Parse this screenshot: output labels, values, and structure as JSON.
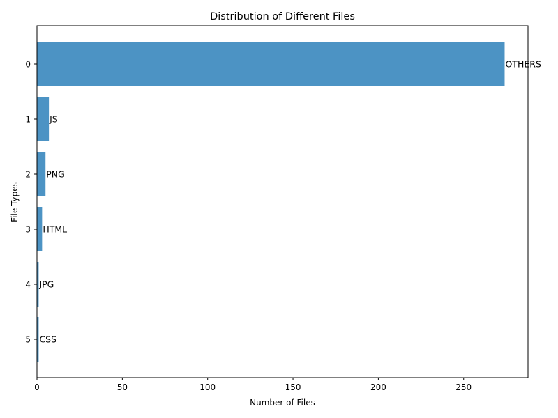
{
  "chart_data": {
    "type": "bar",
    "orientation": "horizontal",
    "title": "Distribution of Different Files",
    "xlabel": "Number of Files",
    "ylabel": "File Types",
    "categories": [
      "0",
      "1",
      "2",
      "3",
      "4",
      "5"
    ],
    "values": [
      274,
      7,
      5,
      3,
      1,
      1
    ],
    "bar_labels": [
      "OTHERS",
      "JS",
      "PNG",
      "HTML",
      "JPG",
      "CSS"
    ],
    "x_ticks": [
      0,
      50,
      100,
      150,
      200,
      250
    ],
    "xlim": [
      0,
      287.7
    ],
    "bar_color": "#4c93c4",
    "grid": false,
    "legend": "none"
  }
}
